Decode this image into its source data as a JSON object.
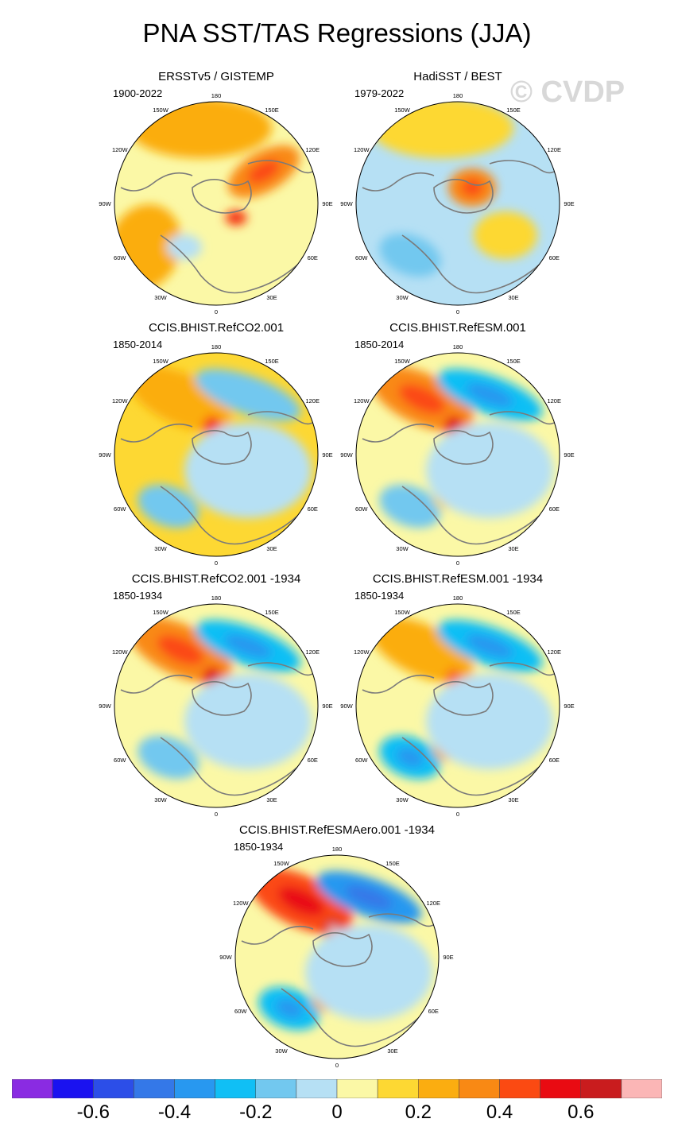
{
  "page": {
    "title": "PNA SST/TAS Regressions (JJA)",
    "watermark": "© CVDP"
  },
  "chart_data": [
    {
      "type": "heatmap",
      "title": "ERSSTv5 / GISTEMP",
      "period": "1900-2022",
      "projection": "north polar stereographic",
      "longitude_labels": [
        "180",
        "150E",
        "120E",
        "90E",
        "60E",
        "30E",
        "0",
        "30W",
        "60W",
        "90W",
        "120W",
        "150W"
      ],
      "features": [
        {
          "kind": "warm",
          "level": 0.2,
          "region": "North Pacific"
        },
        {
          "kind": "warm",
          "level": 0.3,
          "region": "Northern Siberia"
        },
        {
          "kind": "warm",
          "level": 0.4,
          "region": "Barents/Kara Sea ice edge"
        },
        {
          "kind": "warm",
          "level": 0.2,
          "region": "North Atlantic / Canada"
        },
        {
          "kind": "cool",
          "level": -0.1,
          "region": "Labrador Sea"
        },
        {
          "kind": "neutral",
          "level": 0.05,
          "region": "background"
        }
      ]
    },
    {
      "type": "heatmap",
      "title": "HadiSST / BEST",
      "period": "1979-2022",
      "projection": "north polar stereographic",
      "longitude_labels": [
        "180",
        "150E",
        "120E",
        "90E",
        "60E",
        "30E",
        "0",
        "30W",
        "60W",
        "90W",
        "120W",
        "150W"
      ],
      "features": [
        {
          "kind": "cool",
          "level": -0.1,
          "region": "background"
        },
        {
          "kind": "cool",
          "level": -0.2,
          "region": "Northwest Atlantic"
        },
        {
          "kind": "warm",
          "level": 0.1,
          "region": "North Pacific"
        },
        {
          "kind": "warm",
          "level": 0.3,
          "region": "Central Arctic"
        },
        {
          "kind": "warm",
          "level": 0.1,
          "region": "Eurasia"
        }
      ]
    },
    {
      "type": "heatmap",
      "title": "CCIS.BHIST.RefCO2.001",
      "period": "1850-2014",
      "projection": "north polar stereographic",
      "longitude_labels": [
        "180",
        "150E",
        "120E",
        "90E",
        "60E",
        "30E",
        "0",
        "30W",
        "60W",
        "90W",
        "120W",
        "150W"
      ],
      "features": [
        {
          "kind": "warm",
          "level": 0.2,
          "region": "Northeast Pacific / Alaska"
        },
        {
          "kind": "warm",
          "level": 0.4,
          "region": "Bering Strait"
        },
        {
          "kind": "cool",
          "level": -0.2,
          "region": "Northwest Pacific"
        },
        {
          "kind": "cool",
          "level": -0.2,
          "region": "Northwest Atlantic"
        },
        {
          "kind": "cool",
          "level": -0.1,
          "region": "Arctic & Eurasia"
        },
        {
          "kind": "warm",
          "level": 0.1,
          "region": "background"
        }
      ]
    },
    {
      "type": "heatmap",
      "title": "CCIS.BHIST.RefESM.001",
      "period": "1850-2014",
      "projection": "north polar stereographic",
      "longitude_labels": [
        "180",
        "150E",
        "120E",
        "90E",
        "60E",
        "30E",
        "0",
        "30W",
        "60W",
        "90W",
        "120W",
        "150W"
      ],
      "features": [
        {
          "kind": "warm",
          "level": 0.3,
          "region": "Northeast Pacific / Alaska"
        },
        {
          "kind": "warm",
          "level": 0.5,
          "region": "Bering Strait"
        },
        {
          "kind": "cool",
          "level": -0.3,
          "region": "Northwest Pacific"
        },
        {
          "kind": "cool",
          "level": -0.2,
          "region": "Northwest Atlantic"
        },
        {
          "kind": "warm",
          "level": 0.1,
          "region": "Greenland coast"
        },
        {
          "kind": "cool",
          "level": -0.1,
          "region": "Arctic & Eurasia"
        }
      ]
    },
    {
      "type": "heatmap",
      "title": "CCIS.BHIST.RefCO2.001 -1934",
      "period": "1850-1934",
      "projection": "north polar stereographic",
      "longitude_labels": [
        "180",
        "150E",
        "120E",
        "90E",
        "60E",
        "30E",
        "0",
        "30W",
        "60W",
        "90W",
        "120W",
        "150W"
      ],
      "features": [
        {
          "kind": "warm",
          "level": 0.3,
          "region": "Northeast Pacific / Alaska"
        },
        {
          "kind": "warm",
          "level": 0.5,
          "region": "Bering Strait"
        },
        {
          "kind": "cool",
          "level": -0.3,
          "region": "Northwest Pacific"
        },
        {
          "kind": "cool",
          "level": -0.2,
          "region": "Northwest Atlantic"
        },
        {
          "kind": "cool",
          "level": -0.1,
          "region": "Arctic & Eurasia"
        }
      ]
    },
    {
      "type": "heatmap",
      "title": "CCIS.BHIST.RefESM.001 -1934",
      "period": "1850-1934",
      "projection": "north polar stereographic",
      "longitude_labels": [
        "180",
        "150E",
        "120E",
        "90E",
        "60E",
        "30E",
        "0",
        "30W",
        "60W",
        "90W",
        "120W",
        "150W"
      ],
      "features": [
        {
          "kind": "warm",
          "level": 0.2,
          "region": "Northeast Pacific / Alaska"
        },
        {
          "kind": "warm",
          "level": 0.3,
          "region": "Bering Strait"
        },
        {
          "kind": "cool",
          "level": -0.3,
          "region": "Northwest Pacific"
        },
        {
          "kind": "cool",
          "level": -0.3,
          "region": "Northwest Atlantic"
        },
        {
          "kind": "warm",
          "level": 0.2,
          "region": "Greenland coast"
        },
        {
          "kind": "cool",
          "level": -0.1,
          "region": "Arctic & Eurasia"
        }
      ]
    },
    {
      "type": "heatmap",
      "title": "CCIS.BHIST.RefESMAero.001 -1934",
      "period": "1850-1934",
      "projection": "north polar stereographic",
      "longitude_labels": [
        "180",
        "150E",
        "120E",
        "90E",
        "60E",
        "30E",
        "0",
        "30W",
        "60W",
        "90W",
        "120W",
        "150W"
      ],
      "features": [
        {
          "kind": "warm",
          "level": 0.4,
          "region": "Northeast Pacific / Alaska"
        },
        {
          "kind": "warm",
          "level": 0.6,
          "region": "Bering Strait"
        },
        {
          "kind": "cool",
          "level": -0.4,
          "region": "Northwest Pacific"
        },
        {
          "kind": "cool",
          "level": -0.3,
          "region": "Northwest Atlantic"
        },
        {
          "kind": "warm",
          "level": 0.2,
          "region": "Greenland coast"
        },
        {
          "kind": "cool",
          "level": -0.1,
          "region": "Arctic & Eurasia"
        }
      ]
    }
  ],
  "colorbar": {
    "boundaries": [
      -0.7,
      -0.6,
      -0.5,
      -0.4,
      -0.3,
      -0.2,
      -0.1,
      0,
      0.1,
      0.2,
      0.3,
      0.4,
      0.5,
      0.6,
      0.7
    ],
    "colors": [
      "#8a2be2",
      "#1a12f0",
      "#2c4ee8",
      "#3478e8",
      "#2898f0",
      "#10bff5",
      "#72c8ef",
      "#b6e0f4",
      "#fbf8a6",
      "#fdd833",
      "#fbad10",
      "#f98914",
      "#fb4a12",
      "#e90b12",
      "#c91c1e",
      "#fbb6b6"
    ],
    "tick_labels": [
      {
        "value": -0.6,
        "label": "-0.6"
      },
      {
        "value": -0.4,
        "label": "-0.4"
      },
      {
        "value": -0.2,
        "label": "-0.2"
      },
      {
        "value": 0,
        "label": "0"
      },
      {
        "value": 0.2,
        "label": "0.2"
      },
      {
        "value": 0.4,
        "label": "0.4"
      },
      {
        "value": 0.6,
        "label": "0.6"
      }
    ],
    "vmin": -0.8,
    "vmax": 0.8
  }
}
